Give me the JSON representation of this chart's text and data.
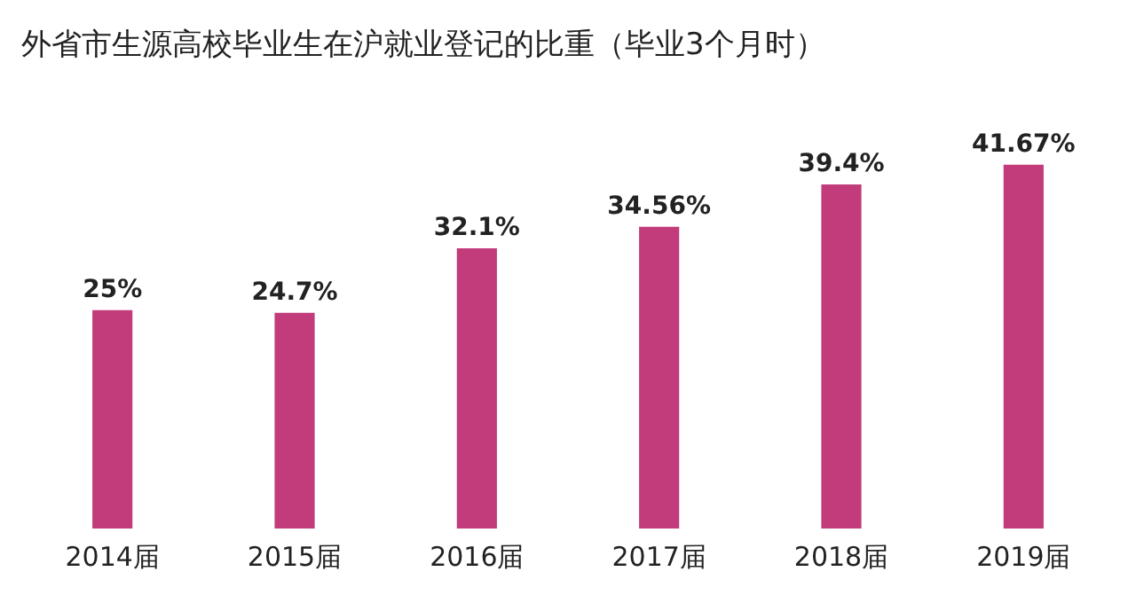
{
  "chart_data": {
    "type": "bar",
    "title": "外省市生源高校毕业生在沪就业登记的比重（毕业3个月时）",
    "categories": [
      "2014届",
      "2015届",
      "2016届",
      "2017届",
      "2018届",
      "2019届"
    ],
    "values": [
      25,
      24.7,
      32.1,
      34.56,
      39.4,
      41.67
    ],
    "value_labels": [
      "25%",
      "24.7%",
      "32.1%",
      "34.56%",
      "39.4%",
      "41.67%"
    ],
    "color": "#c23b7b",
    "grid": false,
    "legend": false,
    "tick_labels": "x"
  }
}
